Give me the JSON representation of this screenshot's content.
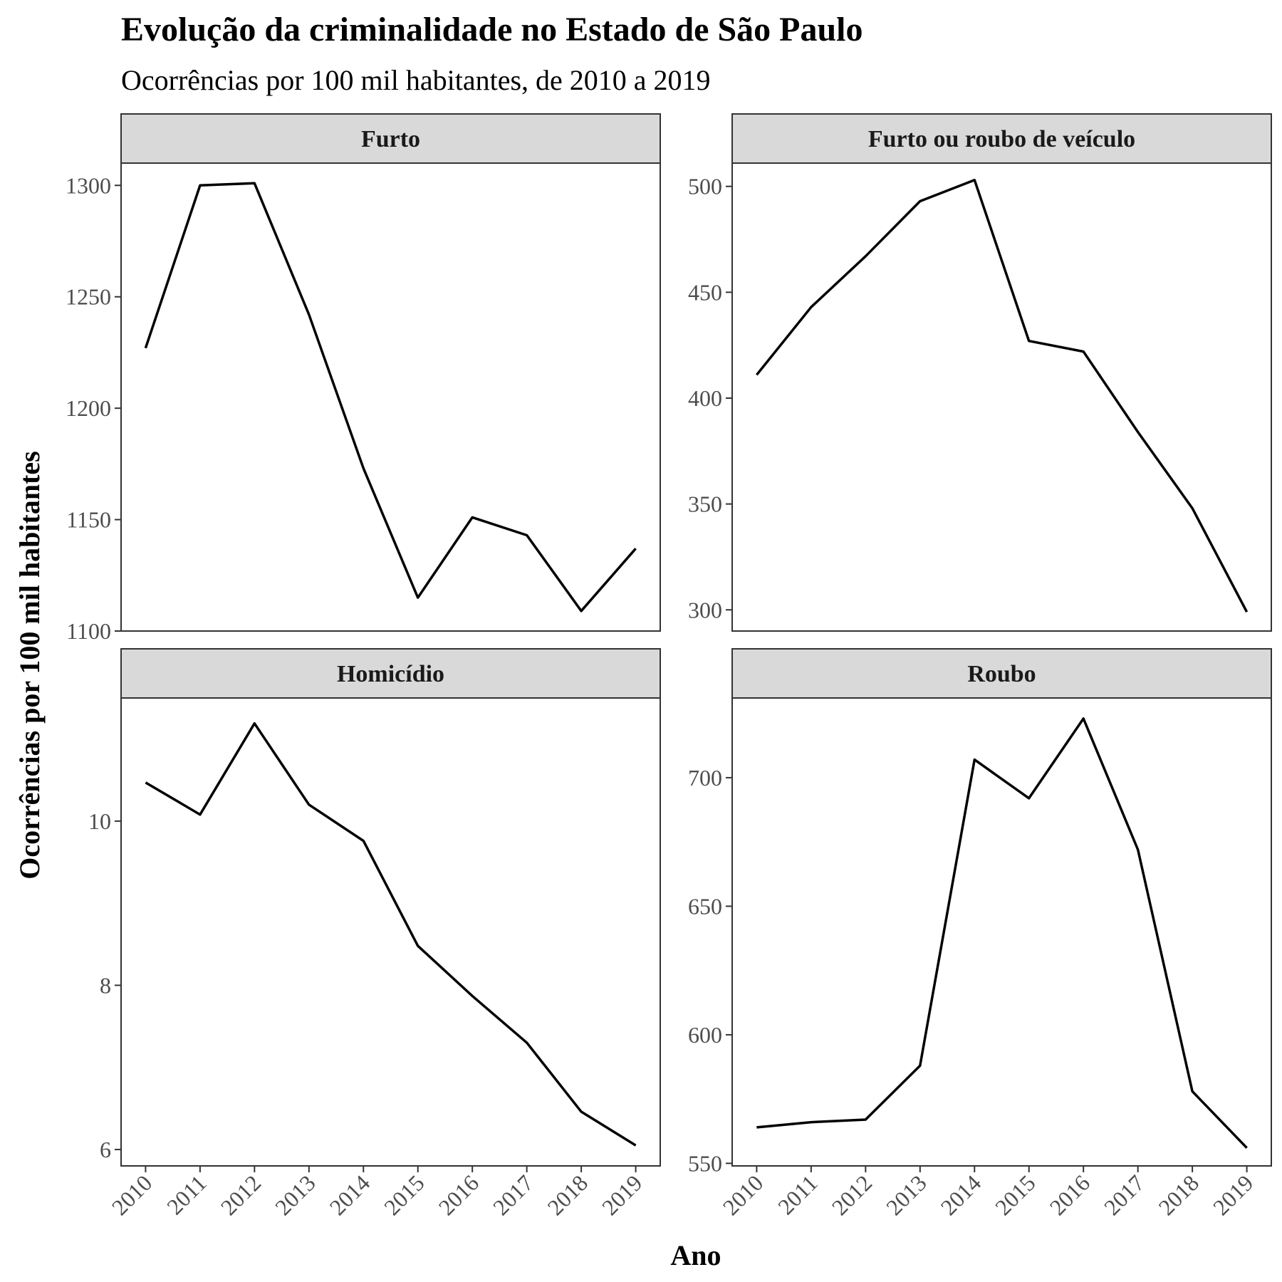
{
  "chart_data": {
    "type": "line",
    "title": "Evolução da criminalidade no Estado de São Paulo",
    "subtitle": "Ocorrências por 100 mil habitantes, de 2010 a 2019",
    "xlabel": "Ano",
    "ylabel": "Ocorrências por 100 mil habitantes",
    "grid": false,
    "x": [
      2010,
      2011,
      2012,
      2013,
      2014,
      2015,
      2016,
      2017,
      2018,
      2019
    ],
    "facets": [
      {
        "name": "Furto",
        "ylim": [
          1100,
          1310
        ],
        "yticks": [
          1100,
          1150,
          1200,
          1250,
          1300
        ],
        "values": [
          1227,
          1300,
          1301,
          1242,
          1173,
          1115,
          1151,
          1143,
          1109,
          1137
        ]
      },
      {
        "name": "Furto ou roubo de veículo",
        "ylim": [
          290,
          511
        ],
        "yticks": [
          300,
          350,
          400,
          450,
          500
        ],
        "values": [
          411,
          443,
          467,
          493,
          503,
          427,
          422,
          384,
          348,
          299
        ]
      },
      {
        "name": "Homicídio",
        "ylim": [
          5.8,
          11.5
        ],
        "yticks": [
          6,
          8,
          10
        ],
        "values": [
          10.47,
          10.08,
          11.19,
          10.2,
          9.76,
          8.48,
          7.87,
          7.3,
          6.46,
          6.05
        ]
      },
      {
        "name": "Roubo",
        "ylim": [
          549,
          731
        ],
        "yticks": [
          550,
          600,
          650,
          700
        ],
        "values": [
          564,
          566,
          567,
          588,
          707,
          692,
          723,
          672,
          578,
          556
        ]
      }
    ]
  }
}
